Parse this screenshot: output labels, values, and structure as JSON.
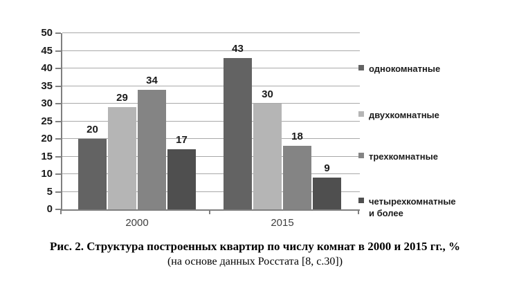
{
  "chart_data": {
    "type": "bar",
    "categories": [
      "2000",
      "2015"
    ],
    "series": [
      {
        "name": "однокомнатные",
        "values": [
          20,
          43
        ],
        "color": "#636363"
      },
      {
        "name": "двухкомнатные",
        "values": [
          29,
          30
        ],
        "color": "#b5b5b5"
      },
      {
        "name": "трехкомнатные",
        "values": [
          34,
          18
        ],
        "color": "#848484"
      },
      {
        "name": "четырехкомнатные и более",
        "values": [
          17,
          9
        ],
        "color": "#4f4f4f"
      }
    ],
    "legend_labels": [
      "однокомнатные",
      "двухкомнатные",
      "трехкомнатные",
      "четырехкомнатные\nи более"
    ],
    "yticks": [
      0,
      5,
      10,
      15,
      20,
      25,
      30,
      35,
      40,
      45,
      50
    ],
    "ylim": [
      0,
      50
    ],
    "grid": true,
    "legend_position": "right",
    "value_labels": true,
    "colors": {
      "gridline": "#a8a8a8",
      "axis": "#7f7f7f",
      "label_text": "#1a1a1a",
      "category_text": "#3f3f3f"
    }
  },
  "caption": {
    "line1": "Рис. 2. Структура построенных квартир по числу комнат в 2000 и 2015 гг., %",
    "line2": "(на основе данных Росстата [8, с.30])"
  }
}
